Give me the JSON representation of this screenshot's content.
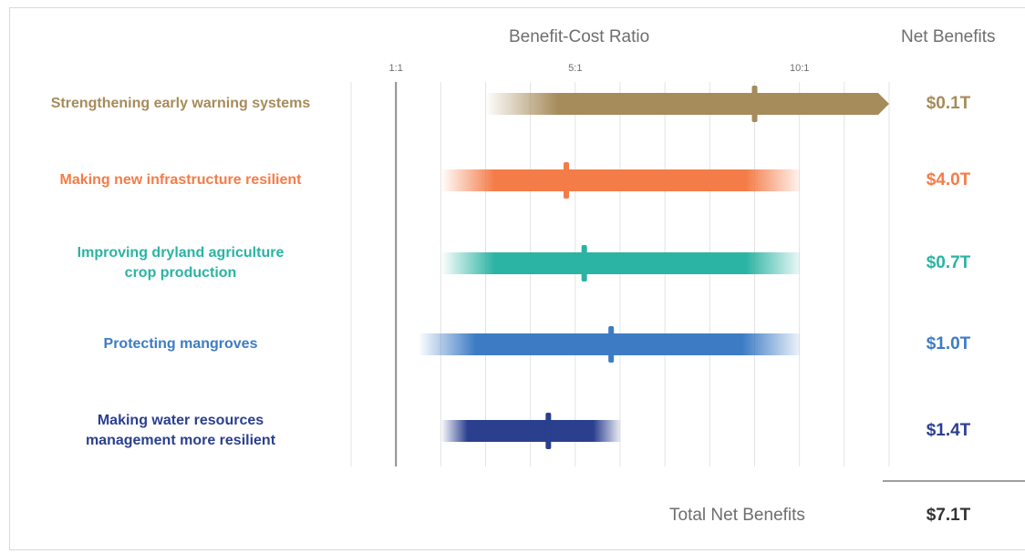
{
  "chart_data": {
    "type": "range",
    "column_titles": {
      "ratio": "Benefit-Cost Ratio",
      "net": "Net Benefits"
    },
    "x_ticks": [
      {
        "value": 1,
        "label": "1:1"
      },
      {
        "value": 5,
        "label": "5:1"
      },
      {
        "value": 10,
        "label": "10:1"
      }
    ],
    "x_range": [
      0,
      12
    ],
    "grid": true,
    "rows": [
      {
        "label": "Strengthening early warning systems",
        "low": 3,
        "high": 12,
        "median": 9,
        "net_benefits": "$0.1T",
        "color": "#a68b5b",
        "extends_beyond_axis": true
      },
      {
        "label": "Making new infrastructure resilient",
        "low": 2,
        "high": 10,
        "median": 4.8,
        "net_benefits": "$4.0T",
        "color": "#f47c48"
      },
      {
        "label": "Improving dryland agriculture\ncrop production",
        "low": 2,
        "high": 10,
        "median": 5.2,
        "net_benefits": "$0.7T",
        "color": "#2bb3a3"
      },
      {
        "label": "Protecting mangroves",
        "low": 1.5,
        "high": 10,
        "median": 5.8,
        "net_benefits": "$1.0T",
        "color": "#3d7cc4"
      },
      {
        "label": "Making water resources\nmanagement more resilient",
        "low": 2,
        "high": 6,
        "median": 4.4,
        "net_benefits": "$1.4T",
        "color": "#2b3f8f"
      }
    ],
    "total": {
      "label": "Total Net Benefits",
      "value": "$7.1T"
    }
  }
}
